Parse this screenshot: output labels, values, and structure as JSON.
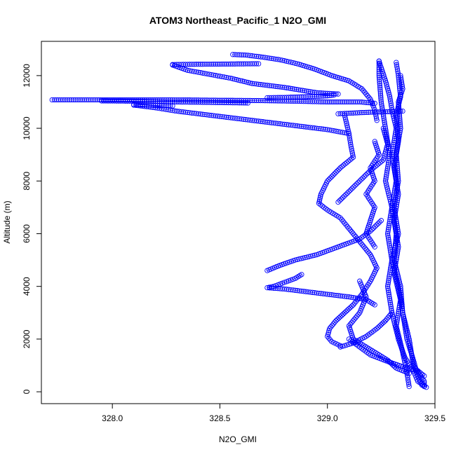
{
  "chart_data": {
    "type": "scatter",
    "title": "ATOM3 Northeast_Pacific_1 N2O_GMI",
    "xlabel": "N2O_GMI",
    "ylabel": "Altitude (m)",
    "xlim": [
      327.67,
      329.5
    ],
    "ylim": [
      -450,
      13300
    ],
    "x_ticks": [
      328.0,
      328.5,
      329.0,
      329.5
    ],
    "x_tick_labels": [
      "328.0",
      "328.5",
      "329.0",
      "329.5"
    ],
    "y_ticks": [
      0,
      2000,
      4000,
      6000,
      8000,
      10000,
      12000
    ],
    "y_tick_labels": [
      "0",
      "2000",
      "4000",
      "6000",
      "8000",
      "10000",
      "12000"
    ],
    "grid": false,
    "legend": "none",
    "marker": "open-circle",
    "color": "#0000ff",
    "series": [
      {
        "points": [
          [
            329.46,
            170
          ],
          [
            329.42,
            400
          ],
          [
            329.4,
            800
          ],
          [
            329.36,
            1300
          ],
          [
            329.33,
            2000
          ],
          [
            329.3,
            3000
          ],
          [
            329.28,
            4000
          ],
          [
            329.3,
            5000
          ],
          [
            329.28,
            6000
          ],
          [
            329.3,
            7000
          ],
          [
            329.27,
            8000
          ],
          [
            329.29,
            9000
          ],
          [
            329.27,
            10000
          ],
          [
            329.25,
            11000
          ],
          [
            329.24,
            12000
          ],
          [
            329.24,
            12550
          ]
        ]
      },
      {
        "points": [
          [
            329.24,
            12550
          ],
          [
            329.25,
            12300
          ],
          [
            329.27,
            11800
          ],
          [
            329.29,
            11200
          ],
          [
            329.3,
            10700
          ],
          [
            329.32,
            10000
          ],
          [
            329.3,
            9000
          ],
          [
            329.32,
            8000
          ],
          [
            329.3,
            7000
          ],
          [
            329.32,
            6000
          ],
          [
            329.31,
            5000
          ],
          [
            329.34,
            4000
          ],
          [
            329.35,
            3000
          ],
          [
            329.38,
            2000
          ],
          [
            329.4,
            1000
          ],
          [
            329.45,
            400
          ],
          [
            329.45,
            200
          ]
        ]
      },
      {
        "points": [
          [
            329.32,
            12500
          ],
          [
            329.33,
            12000
          ],
          [
            329.34,
            11200
          ],
          [
            329.32,
            10500
          ],
          [
            329.33,
            9500
          ],
          [
            329.31,
            8500
          ],
          [
            329.33,
            7500
          ],
          [
            329.31,
            6500
          ],
          [
            329.33,
            5500
          ],
          [
            329.31,
            4500
          ],
          [
            329.34,
            3500
          ],
          [
            329.32,
            2500
          ],
          [
            329.35,
            1500
          ],
          [
            329.37,
            700
          ],
          [
            329.38,
            200
          ]
        ]
      },
      {
        "points": [
          [
            329.34,
            12000
          ],
          [
            329.35,
            11500
          ],
          [
            329.33,
            11000
          ],
          [
            329.34,
            10000
          ],
          [
            329.32,
            9000
          ],
          [
            329.33,
            8000
          ],
          [
            329.31,
            7000
          ],
          [
            329.33,
            6000
          ],
          [
            329.3,
            5000
          ],
          [
            329.33,
            4000
          ],
          [
            329.35,
            3000
          ],
          [
            329.37,
            2000
          ],
          [
            329.4,
            1200
          ],
          [
            329.42,
            600
          ],
          [
            329.44,
            250
          ]
        ]
      },
      {
        "points": [
          [
            328.56,
            12800
          ],
          [
            328.62,
            12780
          ],
          [
            328.7,
            12700
          ],
          [
            328.78,
            12600
          ],
          [
            328.86,
            12450
          ],
          [
            328.94,
            12250
          ],
          [
            329.02,
            12000
          ],
          [
            329.1,
            11800
          ],
          [
            329.16,
            11500
          ],
          [
            329.2,
            11100
          ],
          [
            329.22,
            10700
          ],
          [
            329.23,
            10300
          ]
        ]
      },
      {
        "points": [
          [
            328.28,
            12420
          ],
          [
            328.4,
            12430
          ],
          [
            328.55,
            12440
          ],
          [
            328.68,
            12450
          ]
        ]
      },
      {
        "points": [
          [
            328.28,
            12400
          ],
          [
            328.35,
            12200
          ],
          [
            328.45,
            12050
          ],
          [
            328.55,
            11900
          ],
          [
            328.65,
            11700
          ],
          [
            328.8,
            11550
          ],
          [
            328.95,
            11350
          ],
          [
            329.05,
            11300
          ]
        ]
      },
      {
        "points": [
          [
            327.72,
            11080
          ],
          [
            327.8,
            11080
          ],
          [
            327.95,
            11080
          ],
          [
            328.1,
            11080
          ],
          [
            328.25,
            11080
          ],
          [
            328.4,
            11070
          ],
          [
            328.55,
            11060
          ],
          [
            328.7,
            11050
          ],
          [
            328.85,
            11030
          ],
          [
            329.0,
            11000
          ],
          [
            329.15,
            11000
          ],
          [
            329.22,
            10950
          ]
        ]
      },
      {
        "points": [
          [
            327.95,
            11040
          ],
          [
            328.1,
            11030
          ],
          [
            328.25,
            11000
          ],
          [
            328.4,
            10990
          ],
          [
            328.55,
            10970
          ],
          [
            328.63,
            10960
          ]
        ]
      },
      {
        "points": [
          [
            328.1,
            10900
          ],
          [
            328.2,
            10870
          ],
          [
            328.28,
            10850
          ]
        ]
      },
      {
        "points": [
          [
            328.1,
            10880
          ],
          [
            328.2,
            10780
          ],
          [
            328.3,
            10650
          ],
          [
            328.4,
            10550
          ],
          [
            328.5,
            10450
          ],
          [
            328.6,
            10350
          ],
          [
            328.7,
            10250
          ],
          [
            328.8,
            10150
          ],
          [
            328.9,
            10050
          ],
          [
            329.0,
            9950
          ],
          [
            329.1,
            9800
          ]
        ]
      },
      {
        "points": [
          [
            328.72,
            11160
          ],
          [
            328.8,
            11170
          ],
          [
            328.9,
            11200
          ],
          [
            329.0,
            11230
          ],
          [
            329.03,
            11260
          ]
        ]
      },
      {
        "points": [
          [
            329.05,
            10550
          ],
          [
            329.12,
            10580
          ],
          [
            329.2,
            10610
          ],
          [
            329.28,
            10630
          ],
          [
            329.35,
            10650
          ]
        ]
      },
      {
        "points": [
          [
            329.08,
            10500
          ],
          [
            329.1,
            9800
          ],
          [
            329.11,
            9300
          ],
          [
            329.12,
            8900
          ],
          [
            329.06,
            8500
          ],
          [
            329.0,
            8000
          ],
          [
            328.97,
            7500
          ],
          [
            328.96,
            7150
          ],
          [
            329.0,
            6900
          ],
          [
            329.06,
            6600
          ],
          [
            329.1,
            6200
          ],
          [
            329.15,
            5700
          ],
          [
            329.2,
            5200
          ],
          [
            329.23,
            4700
          ],
          [
            329.2,
            4200
          ],
          [
            329.16,
            3700
          ],
          [
            329.12,
            3300
          ],
          [
            329.08,
            3000
          ],
          [
            329.04,
            2700
          ],
          [
            329.01,
            2400
          ],
          [
            329.0,
            2100
          ],
          [
            329.02,
            1900
          ],
          [
            329.06,
            1750
          ]
        ]
      },
      {
        "points": [
          [
            329.06,
            1700
          ],
          [
            329.12,
            1850
          ],
          [
            329.18,
            2100
          ],
          [
            329.23,
            2400
          ],
          [
            329.27,
            2700
          ],
          [
            329.3,
            3000
          ]
        ]
      },
      {
        "points": [
          [
            328.88,
            4450
          ],
          [
            328.85,
            4300
          ],
          [
            328.8,
            4150
          ],
          [
            328.75,
            4000
          ],
          [
            328.72,
            3950
          ],
          [
            328.8,
            3900
          ],
          [
            328.9,
            3800
          ],
          [
            329.0,
            3700
          ],
          [
            329.1,
            3600
          ],
          [
            329.18,
            3500
          ],
          [
            329.22,
            3300
          ]
        ]
      },
      {
        "points": [
          [
            328.72,
            4600
          ],
          [
            328.78,
            4800
          ],
          [
            328.85,
            5000
          ],
          [
            328.95,
            5200
          ],
          [
            329.05,
            5500
          ],
          [
            329.15,
            5800
          ],
          [
            329.2,
            6100
          ],
          [
            329.25,
            6500
          ]
        ]
      },
      {
        "points": [
          [
            329.1,
            2000
          ],
          [
            329.15,
            1700
          ],
          [
            329.2,
            1400
          ],
          [
            329.28,
            1150
          ],
          [
            329.35,
            950
          ],
          [
            329.42,
            800
          ],
          [
            329.45,
            600
          ]
        ]
      },
      {
        "points": [
          [
            329.05,
            7200
          ],
          [
            329.1,
            7600
          ],
          [
            329.15,
            8000
          ],
          [
            329.2,
            8400
          ],
          [
            329.26,
            8800
          ],
          [
            329.28,
            9400
          ],
          [
            329.26,
            10000
          ]
        ]
      },
      {
        "points": [
          [
            329.15,
            4200
          ],
          [
            329.18,
            3600
          ],
          [
            329.15,
            3000
          ],
          [
            329.1,
            2500
          ],
          [
            329.12,
            2000
          ],
          [
            329.2,
            1600
          ],
          [
            329.28,
            1200
          ],
          [
            329.32,
            900
          ],
          [
            329.38,
            700
          ]
        ]
      },
      {
        "points": [
          [
            329.22,
            5500
          ],
          [
            329.18,
            6000
          ],
          [
            329.2,
            6500
          ],
          [
            329.22,
            7000
          ],
          [
            329.18,
            7500
          ],
          [
            329.22,
            8000
          ],
          [
            329.2,
            8500
          ],
          [
            329.24,
            9000
          ],
          [
            329.22,
            9500
          ]
        ]
      }
    ]
  }
}
